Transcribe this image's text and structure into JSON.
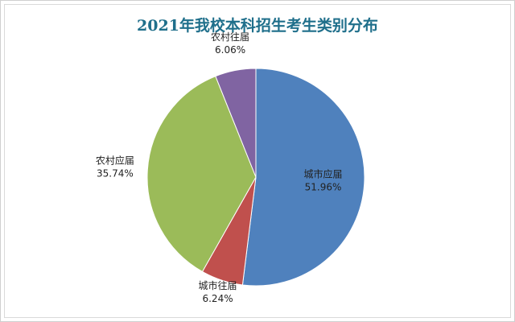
{
  "chart_data": {
    "type": "pie",
    "title": "2021年我校本科招生考生类别分布",
    "categories": [
      "城市应届",
      "城市往届",
      "农村应届",
      "农村往届"
    ],
    "values": [
      51.96,
      6.24,
      35.74,
      6.06
    ],
    "value_labels": [
      "51.96%",
      "6.24%",
      "35.74%",
      "6.06%"
    ],
    "colors": [
      "#4f81bd",
      "#c0504d",
      "#9bbb59",
      "#8064a2"
    ]
  }
}
